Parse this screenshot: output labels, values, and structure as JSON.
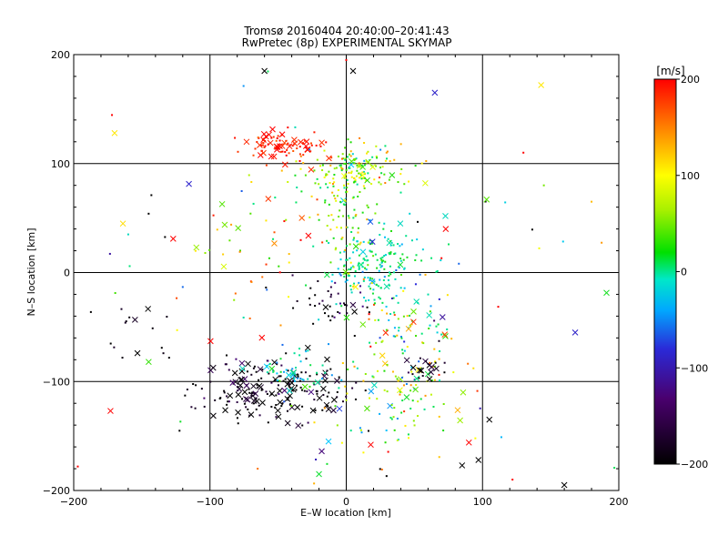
{
  "chart_data": {
    "type": "scatter",
    "title": "Tromsø 20160404 20:40:00–20:41:43",
    "subtitle": "RwPretec (8p) EXPERIMENTAL SKYMAP",
    "xlabel": "E–W location [km]",
    "ylabel": "N–S location [km]",
    "xlim": [
      -200,
      200
    ],
    "ylim": [
      -200,
      200
    ],
    "xticks": [
      "−200",
      "−100",
      "0",
      "100",
      "200"
    ],
    "yticks": [
      "−200",
      "−100",
      "0",
      "100",
      "200"
    ],
    "grid": true,
    "colorbar": {
      "unit": "[m/s]",
      "range": [
        -200,
        200
      ],
      "ticks": [
        "200",
        "100",
        "0",
        "−100",
        "−200"
      ]
    },
    "clusters": [
      {
        "cx": -50,
        "cy": 115,
        "sx": 14,
        "sy": 8,
        "vmean": 190,
        "vspread": 15,
        "n_dot": 60,
        "n_cross": 30
      },
      {
        "cx": 5,
        "cy": 95,
        "sx": 18,
        "sy": 12,
        "vmean": 60,
        "vspread": 45,
        "n_dot": 150,
        "n_cross": 12
      },
      {
        "cx": 20,
        "cy": 5,
        "sx": 18,
        "sy": 18,
        "vmean": -5,
        "vspread": 30,
        "n_dot": 170,
        "n_cross": 8
      },
      {
        "cx": 0,
        "cy": 40,
        "sx": 12,
        "sy": 22,
        "vmean": 60,
        "vspread": 40,
        "n_dot": 60,
        "n_cross": 3
      },
      {
        "cx": -55,
        "cy": -108,
        "sx": 28,
        "sy": 14,
        "vmean": -195,
        "vspread": 15,
        "n_dot": 130,
        "n_cross": 65
      },
      {
        "cx": -35,
        "cy": -90,
        "sx": 14,
        "sy": 10,
        "vmean": -20,
        "vspread": 35,
        "n_dot": 40,
        "n_cross": 10
      },
      {
        "cx": 40,
        "cy": -60,
        "sx": 18,
        "sy": 30,
        "vmean": 40,
        "vspread": 90,
        "n_dot": 70,
        "n_cross": 14
      },
      {
        "cx": 30,
        "cy": -120,
        "sx": 30,
        "sy": 30,
        "vmean": 60,
        "vspread": 60,
        "n_dot": 90,
        "n_cross": 10
      },
      {
        "cx": 60,
        "cy": -90,
        "sx": 6,
        "sy": 6,
        "vmean": -195,
        "vspread": 10,
        "n_dot": 10,
        "n_cross": 10
      },
      {
        "cx": -10,
        "cy": -30,
        "sx": 12,
        "sy": 15,
        "vmean": -190,
        "vspread": 20,
        "n_dot": 35,
        "n_cross": 4
      },
      {
        "cx": -60,
        "cy": 30,
        "sx": 30,
        "sy": 30,
        "vmean": 110,
        "vspread": 70,
        "n_dot": 40,
        "n_cross": 8
      },
      {
        "cx": -145,
        "cy": -60,
        "sx": 25,
        "sy": 25,
        "vmean": -195,
        "vspread": 10,
        "n_dot": 15,
        "n_cross": 3
      },
      {
        "cx": 0,
        "cy": 0,
        "sx": 110,
        "sy": 110,
        "vmean": 0,
        "vspread": 150,
        "n_dot": 60,
        "n_cross": 12
      }
    ],
    "points": [
      {
        "x": -60,
        "y": 185,
        "v": -200,
        "m": "x"
      },
      {
        "x": 5,
        "y": 185,
        "v": -200,
        "m": "x"
      },
      {
        "x": 0,
        "y": 195,
        "v": 200,
        "m": "."
      },
      {
        "x": 65,
        "y": 165,
        "v": -120,
        "m": "x"
      },
      {
        "x": 143,
        "y": 172,
        "v": 110,
        "m": "x"
      },
      {
        "x": -170,
        "y": 128,
        "v": 110,
        "m": "x"
      },
      {
        "x": 103,
        "y": 67,
        "v": 50,
        "m": "x"
      },
      {
        "x": 58,
        "y": 82,
        "v": 90,
        "m": "x"
      },
      {
        "x": 73,
        "y": 40,
        "v": 200,
        "m": "x"
      },
      {
        "x": -127,
        "y": 31,
        "v": 200,
        "m": "x"
      },
      {
        "x": -110,
        "y": 23,
        "v": 70,
        "m": "x"
      },
      {
        "x": 168,
        "y": -55,
        "v": -120,
        "m": "x"
      },
      {
        "x": -145,
        "y": -82,
        "v": 40,
        "m": "x"
      },
      {
        "x": -173,
        "y": -127,
        "v": 200,
        "m": "x"
      },
      {
        "x": -197,
        "y": -178,
        "v": 200,
        "m": "."
      },
      {
        "x": 160,
        "y": -195,
        "v": -200,
        "m": "x"
      },
      {
        "x": 97,
        "y": -172,
        "v": -200,
        "m": "x"
      },
      {
        "x": 85,
        "y": -177,
        "v": -200,
        "m": "x"
      },
      {
        "x": 90,
        "y": -156,
        "v": 200,
        "m": "x"
      },
      {
        "x": 122,
        "y": -190,
        "v": 200,
        "m": "."
      },
      {
        "x": -20,
        "y": -185,
        "v": 20,
        "m": "x"
      },
      {
        "x": -13,
        "y": -155,
        "v": -40,
        "m": "x"
      },
      {
        "x": -18,
        "y": -164,
        "v": -160,
        "m": "x"
      },
      {
        "x": 18,
        "y": -158,
        "v": 200,
        "m": "x"
      },
      {
        "x": -5,
        "y": -125,
        "v": -100,
        "m": "x"
      },
      {
        "x": 105,
        "y": -135,
        "v": -200,
        "m": "x"
      },
      {
        "x": -65,
        "y": -180,
        "v": 160,
        "m": "."
      },
      {
        "x": 145,
        "y": 80,
        "v": 60,
        "m": "."
      },
      {
        "x": 130,
        "y": 110,
        "v": 200,
        "m": "."
      },
      {
        "x": 180,
        "y": 65,
        "v": 130,
        "m": "."
      },
      {
        "x": -160,
        "y": 35,
        "v": -20,
        "m": "."
      },
      {
        "x": -145,
        "y": 54,
        "v": -200,
        "m": "."
      },
      {
        "x": -143,
        "y": 71,
        "v": -200,
        "m": "."
      }
    ]
  }
}
